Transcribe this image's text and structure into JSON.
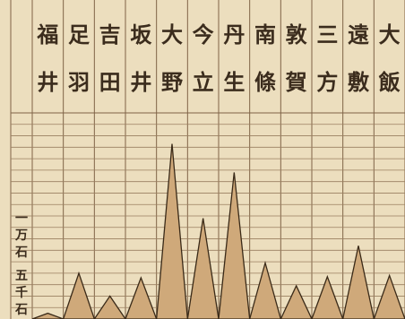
{
  "chart_data": {
    "type": "area",
    "title": "",
    "xlabel": "",
    "ylabel": "",
    "categories": [
      "福井",
      "足羽",
      "吉田",
      "坂井",
      "大野",
      "今立",
      "丹生",
      "南條",
      "敦賀",
      "三方",
      "遠敷",
      "大飯"
    ],
    "values": [
      500,
      4000,
      2000,
      3600,
      15300,
      8800,
      12800,
      4900,
      2900,
      3700,
      6400,
      3800
    ],
    "y_tick_labels": [
      {
        "value": 10000,
        "label": "一万石"
      },
      {
        "value": 5000,
        "label": "五千石"
      }
    ],
    "ylim": [
      0,
      18000
    ],
    "grid": true,
    "legend": "none",
    "colors": {
      "background": "#efe2c2",
      "fill": "#cfa97a",
      "stroke": "#3a2a18",
      "grid": "#7f6347"
    }
  }
}
